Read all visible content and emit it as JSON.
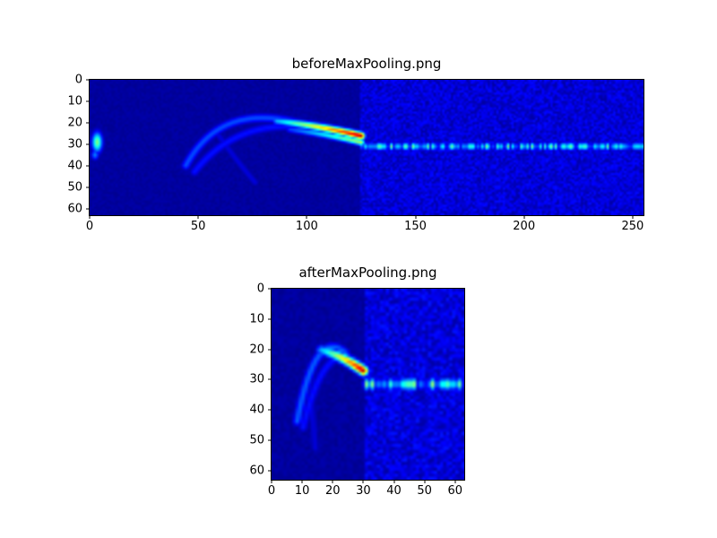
{
  "figure": {
    "background": "#ffffff",
    "frame_color": "#000000",
    "text_color": "#000000",
    "colormap_low": "#000080",
    "colormap_high": "#800000"
  },
  "chart_data": [
    {
      "type": "heatmap",
      "title": "beforeMaxPooling.png",
      "x_range": [
        0,
        255
      ],
      "y_range": [
        0,
        63
      ],
      "x_ticks": [
        0,
        50,
        100,
        150,
        200,
        250
      ],
      "y_ticks": [
        0,
        10,
        20,
        30,
        40,
        50,
        60
      ],
      "colormap": "jet",
      "grid": [
        256,
        64
      ],
      "seed": 7,
      "features": [
        {
          "type": "fill",
          "x0": 0,
          "x1": 124,
          "base": 0.03,
          "noise": 0.012
        },
        {
          "type": "fill",
          "x0": 125,
          "x1": 255,
          "base": 0.085,
          "noise": 0.05
        },
        {
          "type": "band",
          "x0": 125,
          "x1": 255,
          "y": 31,
          "sigma": 1.2,
          "ampMin": 0.12,
          "ampMax": 0.5
        },
        {
          "type": "blob",
          "x": 3,
          "y": 29,
          "sx": 1.6,
          "sy": 3.2,
          "amp": 0.5
        },
        {
          "type": "blob",
          "x": 2,
          "y": 35,
          "sx": 1.2,
          "sy": 1.6,
          "amp": 0.25
        },
        {
          "type": "path",
          "pts": [
            [
              44,
              40
            ],
            [
              60,
              10
            ],
            [
              96,
              20
            ]
          ],
          "amp": 0.2,
          "sigma": 1.4
        },
        {
          "type": "path",
          "pts": [
            [
              48,
              43
            ],
            [
              70,
              14
            ],
            [
              112,
              24
            ]
          ],
          "amp": 0.14,
          "sigma": 1.4
        },
        {
          "type": "path",
          "pts": [
            [
              58,
              24
            ],
            [
              66,
              36
            ],
            [
              76,
              48
            ]
          ],
          "amp": 0.09,
          "sigma": 1.2
        },
        {
          "type": "ramp",
          "pts": [
            [
              86,
              19
            ],
            [
              104,
              21
            ],
            [
              125,
              26
            ]
          ],
          "ampStart": 0.3,
          "ampEnd": 0.95,
          "sigma": 1.2
        },
        {
          "type": "ramp",
          "pts": [
            [
              92,
              23
            ],
            [
              108,
              25
            ],
            [
              125,
              29
            ]
          ],
          "ampStart": 0.18,
          "ampEnd": 0.55,
          "sigma": 1.1
        }
      ]
    },
    {
      "type": "heatmap",
      "title": "afterMaxPooling.png",
      "x_range": [
        0,
        63
      ],
      "y_range": [
        0,
        63
      ],
      "x_ticks": [
        0,
        10,
        20,
        30,
        40,
        50,
        60
      ],
      "y_ticks": [
        0,
        10,
        20,
        30,
        40,
        50,
        60
      ],
      "colormap": "jet",
      "grid": [
        64,
        64
      ],
      "seed": 13,
      "features": [
        {
          "type": "fill",
          "x0": 0,
          "x1": 30,
          "base": 0.03,
          "noise": 0.015
        },
        {
          "type": "fill",
          "x0": 31,
          "x1": 63,
          "base": 0.09,
          "noise": 0.055
        },
        {
          "type": "band",
          "x0": 31,
          "x1": 63,
          "y": 31.5,
          "sigma": 1.3,
          "ampMin": 0.12,
          "ampMax": 0.55
        },
        {
          "type": "path",
          "pts": [
            [
              8,
              44
            ],
            [
              14,
              12
            ],
            [
              24,
              21
            ]
          ],
          "amp": 0.22,
          "sigma": 1.0
        },
        {
          "type": "path",
          "pts": [
            [
              10,
              46
            ],
            [
              17,
              16
            ],
            [
              28,
              24
            ]
          ],
          "amp": 0.14,
          "sigma": 1.0
        },
        {
          "type": "path",
          "pts": [
            [
              12,
              28
            ],
            [
              13,
              40
            ],
            [
              14,
              53
            ]
          ],
          "amp": 0.09,
          "sigma": 0.9
        },
        {
          "type": "ramp",
          "pts": [
            [
              16,
              20
            ],
            [
              23,
              22
            ],
            [
              30,
              27
            ]
          ],
          "ampStart": 0.3,
          "ampEnd": 0.95,
          "sigma": 1.1
        }
      ]
    }
  ]
}
